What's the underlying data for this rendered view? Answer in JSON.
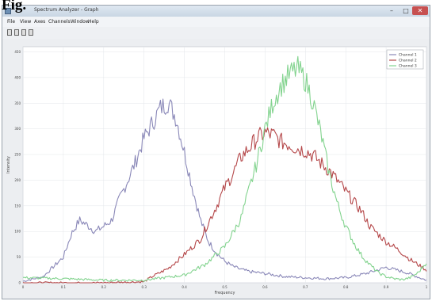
{
  "figure_label": "Fig.",
  "window": {
    "title": "Spectrum Analyzer - Graph",
    "controls": {
      "minimize": "–",
      "maximize": "□",
      "close": "✕"
    }
  },
  "menu": [
    "File",
    "View",
    "Axes",
    "Channels",
    "Window",
    "Help"
  ],
  "toolbar": {
    "tools": [
      "zoom-in-icon",
      "zoom-out-icon",
      "pan-icon",
      "reset-icon"
    ]
  },
  "colors": {
    "ch1": "#8a88b8",
    "ch2": "#b5484a",
    "ch3": "#82d38e"
  },
  "chart_data": {
    "type": "line",
    "xlabel": "Frequency",
    "ylabel": "Intensity",
    "xlim": [
      0,
      1
    ],
    "ylim": [
      0,
      460
    ],
    "x_ticks": [
      "0",
      "0.1",
      "0.2",
      "0.3",
      "0.4",
      "0.5",
      "0.6",
      "0.7",
      "0.8",
      "0.9",
      "1"
    ],
    "y_ticks": [
      "0",
      "50",
      "100",
      "150",
      "200",
      "250",
      "300",
      "350",
      "400",
      "450"
    ],
    "grid": true,
    "legend_position": "top-right",
    "series": [
      {
        "name": "Channel 1",
        "color": "#8a88b8",
        "x": [
          0,
          0.05,
          0.1,
          0.12,
          0.14,
          0.16,
          0.18,
          0.2,
          0.22,
          0.24,
          0.26,
          0.28,
          0.3,
          0.32,
          0.34,
          0.36,
          0.38,
          0.4,
          0.42,
          0.44,
          0.46,
          0.48,
          0.5,
          0.52,
          0.54,
          0.56,
          0.58,
          0.6,
          0.65,
          0.7,
          0.75,
          0.8,
          0.85,
          0.9,
          0.95,
          1
        ],
        "y": [
          3,
          12,
          50,
          95,
          122,
          112,
          100,
          110,
          122,
          165,
          200,
          238,
          282,
          310,
          340,
          352,
          320,
          255,
          185,
          122,
          80,
          58,
          42,
          32,
          26,
          22,
          20,
          18,
          12,
          10,
          8,
          10,
          18,
          30,
          20,
          5
        ]
      },
      {
        "name": "Channel 2",
        "color": "#b5484a",
        "x": [
          0,
          0.1,
          0.2,
          0.3,
          0.32,
          0.36,
          0.4,
          0.44,
          0.46,
          0.48,
          0.5,
          0.52,
          0.54,
          0.56,
          0.58,
          0.6,
          0.62,
          0.64,
          0.66,
          0.68,
          0.7,
          0.72,
          0.74,
          0.76,
          0.78,
          0.8,
          0.82,
          0.84,
          0.86,
          0.88,
          0.9,
          0.92,
          0.94,
          0.96,
          0.98,
          1
        ],
        "y": [
          0,
          0,
          0,
          2,
          12,
          28,
          55,
          85,
          118,
          150,
          185,
          212,
          245,
          262,
          282,
          292,
          288,
          275,
          270,
          262,
          258,
          248,
          232,
          218,
          198,
          178,
          158,
          138,
          110,
          95,
          80,
          70,
          58,
          45,
          35,
          25
        ]
      },
      {
        "name": "Channel 3",
        "color": "#82d38e",
        "x": [
          0,
          0.1,
          0.2,
          0.3,
          0.4,
          0.45,
          0.5,
          0.54,
          0.56,
          0.58,
          0.6,
          0.62,
          0.64,
          0.66,
          0.68,
          0.7,
          0.72,
          0.74,
          0.76,
          0.78,
          0.8,
          0.82,
          0.84,
          0.86,
          0.88,
          0.9,
          0.92,
          0.94,
          0.96,
          0.98,
          1
        ],
        "y": [
          10,
          8,
          5,
          5,
          15,
          35,
          70,
          125,
          180,
          235,
          300,
          352,
          385,
          405,
          418,
          395,
          350,
          285,
          210,
          152,
          110,
          78,
          52,
          35,
          20,
          12,
          8,
          6,
          10,
          20,
          40
        ]
      }
    ]
  }
}
